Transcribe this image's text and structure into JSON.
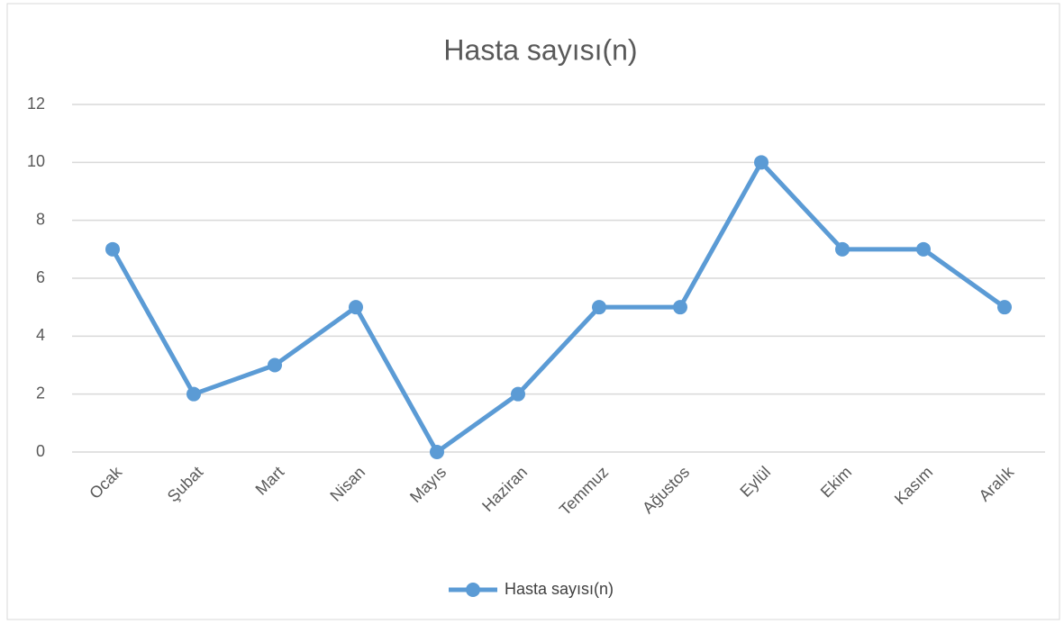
{
  "chart_data": {
    "type": "line",
    "title": "Hasta sayısı(n)",
    "categories": [
      "Ocak",
      "Şubat",
      "Mart",
      "Nisan",
      "Mayıs",
      "Haziran",
      "Temmuz",
      "Ağustos",
      "Eylül",
      "Ekim",
      "Kasım",
      "Aralık"
    ],
    "series": [
      {
        "name": "Hasta sayısı(n)",
        "color": "#5b9bd5",
        "values": [
          7,
          2,
          3,
          5,
          0,
          2,
          5,
          5,
          10,
          7,
          7,
          5
        ]
      }
    ],
    "ylim": [
      0,
      12
    ],
    "yticks": [
      0,
      2,
      4,
      6,
      8,
      10,
      12
    ],
    "grid": true,
    "legend": "bottom"
  }
}
